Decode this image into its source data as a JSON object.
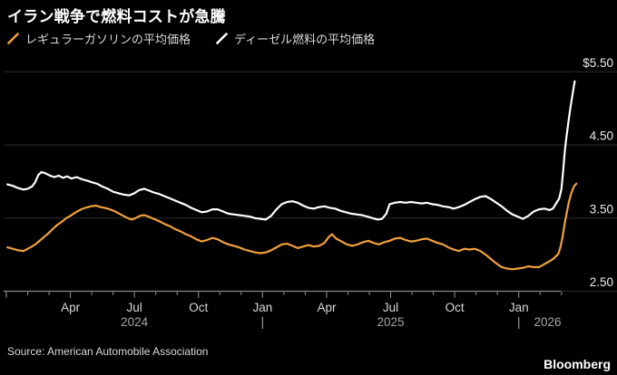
{
  "title": "イラン戦争で燃料コストが急騰",
  "legend": [
    {
      "label": "レギュラーガソリンの平均価格",
      "color": "#F1A13B"
    },
    {
      "label": "ディーゼル燃料の平均価格",
      "color": "#FFFFFF"
    }
  ],
  "source": "Source: American Automobile Association",
  "brand": "Bloomberg",
  "colors": {
    "background": "#000000",
    "gridline": "#2d2d2d",
    "axis": "#8a8a8a",
    "tick": "#9a9a9a",
    "axis_label": "#ededed",
    "month_label": "#d9d9d9",
    "year_label": "#a6a6a6",
    "gasoline": "#F1A13B",
    "diesel": "#FFFFFF"
  },
  "chart_data": {
    "type": "line",
    "x_unit": "months since Jan 2024",
    "y_axis": {
      "range": [
        2.5,
        5.5
      ],
      "ticks": [
        {
          "value": 5.5,
          "label": "$5.50"
        },
        {
          "value": 4.5,
          "label": "4.50"
        },
        {
          "value": 3.5,
          "label": "3.50"
        },
        {
          "value": 2.5,
          "label": "2.50"
        }
      ]
    },
    "x_axis": {
      "minor_tick_every_months": 1,
      "major_tick_every_months": 3,
      "first_month": 0,
      "last_month": 26,
      "month_labels": [
        {
          "m": 3,
          "label": "Apr"
        },
        {
          "m": 6,
          "label": "Jul"
        },
        {
          "m": 9,
          "label": "Oct"
        },
        {
          "m": 12,
          "label": "Jan"
        },
        {
          "m": 15,
          "label": "Apr"
        },
        {
          "m": 18,
          "label": "Jul"
        },
        {
          "m": 21,
          "label": "Oct"
        },
        {
          "m": 24,
          "label": "Jan"
        }
      ],
      "year_labels": [
        {
          "m": 6,
          "label": "2024"
        },
        {
          "m": 12,
          "label": "|"
        },
        {
          "m": 18,
          "label": "2025"
        },
        {
          "m": 24,
          "label": "|"
        },
        {
          "m": 25.35,
          "label": "2026"
        }
      ]
    },
    "series": [
      {
        "name": "レギュラーガソリンの平均価格",
        "key": "gasoline",
        "color": "#F1A13B",
        "points": [
          [
            0.05,
            3.1
          ],
          [
            0.3,
            3.08
          ],
          [
            0.55,
            3.06
          ],
          [
            0.8,
            3.05
          ],
          [
            1.0,
            3.08
          ],
          [
            1.2,
            3.11
          ],
          [
            1.4,
            3.15
          ],
          [
            1.6,
            3.2
          ],
          [
            1.8,
            3.25
          ],
          [
            2.0,
            3.3
          ],
          [
            2.2,
            3.36
          ],
          [
            2.4,
            3.41
          ],
          [
            2.6,
            3.45
          ],
          [
            2.8,
            3.5
          ],
          [
            3.0,
            3.53
          ],
          [
            3.25,
            3.58
          ],
          [
            3.5,
            3.62
          ],
          [
            3.7,
            3.64
          ],
          [
            3.95,
            3.66
          ],
          [
            4.2,
            3.67
          ],
          [
            4.4,
            3.65
          ],
          [
            4.6,
            3.64
          ],
          [
            4.85,
            3.62
          ],
          [
            5.1,
            3.59
          ],
          [
            5.35,
            3.55
          ],
          [
            5.6,
            3.51
          ],
          [
            5.85,
            3.48
          ],
          [
            6.05,
            3.5
          ],
          [
            6.25,
            3.53
          ],
          [
            6.45,
            3.54
          ],
          [
            6.65,
            3.52
          ],
          [
            6.9,
            3.49
          ],
          [
            7.15,
            3.46
          ],
          [
            7.4,
            3.42
          ],
          [
            7.65,
            3.39
          ],
          [
            7.9,
            3.35
          ],
          [
            8.15,
            3.32
          ],
          [
            8.4,
            3.28
          ],
          [
            8.65,
            3.25
          ],
          [
            8.9,
            3.21
          ],
          [
            9.15,
            3.18
          ],
          [
            9.4,
            3.2
          ],
          [
            9.65,
            3.23
          ],
          [
            9.9,
            3.21
          ],
          [
            10.15,
            3.17
          ],
          [
            10.4,
            3.14
          ],
          [
            10.65,
            3.12
          ],
          [
            10.9,
            3.1
          ],
          [
            11.15,
            3.07
          ],
          [
            11.4,
            3.05
          ],
          [
            11.65,
            3.03
          ],
          [
            11.9,
            3.02
          ],
          [
            12.15,
            3.03
          ],
          [
            12.4,
            3.06
          ],
          [
            12.65,
            3.1
          ],
          [
            12.9,
            3.14
          ],
          [
            13.15,
            3.15
          ],
          [
            13.4,
            3.12
          ],
          [
            13.65,
            3.09
          ],
          [
            13.9,
            3.11
          ],
          [
            14.15,
            3.13
          ],
          [
            14.4,
            3.11
          ],
          [
            14.65,
            3.12
          ],
          [
            14.9,
            3.16
          ],
          [
            15.1,
            3.24
          ],
          [
            15.25,
            3.28
          ],
          [
            15.45,
            3.22
          ],
          [
            15.7,
            3.18
          ],
          [
            15.95,
            3.14
          ],
          [
            16.2,
            3.12
          ],
          [
            16.45,
            3.14
          ],
          [
            16.7,
            3.17
          ],
          [
            16.95,
            3.19
          ],
          [
            17.2,
            3.16
          ],
          [
            17.45,
            3.14
          ],
          [
            17.7,
            3.17
          ],
          [
            17.95,
            3.19
          ],
          [
            18.2,
            3.22
          ],
          [
            18.45,
            3.23
          ],
          [
            18.7,
            3.2
          ],
          [
            18.95,
            3.18
          ],
          [
            19.2,
            3.19
          ],
          [
            19.45,
            3.21
          ],
          [
            19.7,
            3.22
          ],
          [
            19.95,
            3.19
          ],
          [
            20.2,
            3.16
          ],
          [
            20.45,
            3.14
          ],
          [
            20.7,
            3.1
          ],
          [
            20.95,
            3.07
          ],
          [
            21.2,
            3.05
          ],
          [
            21.45,
            3.08
          ],
          [
            21.7,
            3.07
          ],
          [
            21.95,
            3.08
          ],
          [
            22.2,
            3.05
          ],
          [
            22.45,
            3.0
          ],
          [
            22.7,
            2.94
          ],
          [
            22.95,
            2.88
          ],
          [
            23.2,
            2.83
          ],
          [
            23.45,
            2.81
          ],
          [
            23.7,
            2.8
          ],
          [
            23.95,
            2.81
          ],
          [
            24.2,
            2.82
          ],
          [
            24.45,
            2.84
          ],
          [
            24.7,
            2.83
          ],
          [
            24.95,
            2.83
          ],
          [
            25.2,
            2.87
          ],
          [
            25.45,
            2.91
          ],
          [
            25.65,
            2.95
          ],
          [
            25.85,
            3.01
          ],
          [
            25.95,
            3.1
          ],
          [
            26.05,
            3.24
          ],
          [
            26.15,
            3.42
          ],
          [
            26.25,
            3.58
          ],
          [
            26.35,
            3.72
          ],
          [
            26.45,
            3.83
          ],
          [
            26.55,
            3.91
          ],
          [
            26.63,
            3.95
          ],
          [
            26.7,
            3.97
          ]
        ]
      },
      {
        "name": "ディーゼル燃料の平均価格",
        "key": "diesel",
        "color": "#FFFFFF",
        "points": [
          [
            0.05,
            3.96
          ],
          [
            0.3,
            3.94
          ],
          [
            0.55,
            3.91
          ],
          [
            0.8,
            3.89
          ],
          [
            1.0,
            3.9
          ],
          [
            1.2,
            3.93
          ],
          [
            1.35,
            3.99
          ],
          [
            1.5,
            4.09
          ],
          [
            1.65,
            4.13
          ],
          [
            1.85,
            4.11
          ],
          [
            2.05,
            4.08
          ],
          [
            2.25,
            4.06
          ],
          [
            2.45,
            4.08
          ],
          [
            2.65,
            4.05
          ],
          [
            2.85,
            4.07
          ],
          [
            3.05,
            4.04
          ],
          [
            3.3,
            4.06
          ],
          [
            3.55,
            4.03
          ],
          [
            3.8,
            4.01
          ],
          [
            4.0,
            3.99
          ],
          [
            4.25,
            3.97
          ],
          [
            4.5,
            3.93
          ],
          [
            4.75,
            3.9
          ],
          [
            5.0,
            3.86
          ],
          [
            5.25,
            3.84
          ],
          [
            5.5,
            3.82
          ],
          [
            5.75,
            3.81
          ],
          [
            6.0,
            3.84
          ],
          [
            6.2,
            3.88
          ],
          [
            6.45,
            3.9
          ],
          [
            6.65,
            3.88
          ],
          [
            6.9,
            3.85
          ],
          [
            7.15,
            3.83
          ],
          [
            7.4,
            3.8
          ],
          [
            7.65,
            3.77
          ],
          [
            7.9,
            3.74
          ],
          [
            8.15,
            3.71
          ],
          [
            8.4,
            3.68
          ],
          [
            8.65,
            3.64
          ],
          [
            8.9,
            3.61
          ],
          [
            9.15,
            3.58
          ],
          [
            9.4,
            3.59
          ],
          [
            9.65,
            3.62
          ],
          [
            9.9,
            3.62
          ],
          [
            10.15,
            3.59
          ],
          [
            10.4,
            3.56
          ],
          [
            10.65,
            3.55
          ],
          [
            10.9,
            3.54
          ],
          [
            11.15,
            3.53
          ],
          [
            11.4,
            3.52
          ],
          [
            11.65,
            3.5
          ],
          [
            11.9,
            3.49
          ],
          [
            12.15,
            3.48
          ],
          [
            12.4,
            3.53
          ],
          [
            12.65,
            3.62
          ],
          [
            12.9,
            3.69
          ],
          [
            13.15,
            3.72
          ],
          [
            13.4,
            3.73
          ],
          [
            13.65,
            3.71
          ],
          [
            13.9,
            3.67
          ],
          [
            14.15,
            3.64
          ],
          [
            14.4,
            3.63
          ],
          [
            14.65,
            3.65
          ],
          [
            14.9,
            3.66
          ],
          [
            15.15,
            3.64
          ],
          [
            15.4,
            3.63
          ],
          [
            15.65,
            3.6
          ],
          [
            15.9,
            3.58
          ],
          [
            16.15,
            3.56
          ],
          [
            16.4,
            3.55
          ],
          [
            16.65,
            3.54
          ],
          [
            16.9,
            3.52
          ],
          [
            17.15,
            3.5
          ],
          [
            17.4,
            3.48
          ],
          [
            17.6,
            3.49
          ],
          [
            17.8,
            3.56
          ],
          [
            17.95,
            3.69
          ],
          [
            18.2,
            3.71
          ],
          [
            18.45,
            3.72
          ],
          [
            18.7,
            3.71
          ],
          [
            18.95,
            3.72
          ],
          [
            19.2,
            3.71
          ],
          [
            19.45,
            3.7
          ],
          [
            19.7,
            3.71
          ],
          [
            19.95,
            3.69
          ],
          [
            20.2,
            3.68
          ],
          [
            20.45,
            3.66
          ],
          [
            20.7,
            3.65
          ],
          [
            20.95,
            3.63
          ],
          [
            21.2,
            3.65
          ],
          [
            21.45,
            3.68
          ],
          [
            21.7,
            3.72
          ],
          [
            21.95,
            3.76
          ],
          [
            22.2,
            3.79
          ],
          [
            22.45,
            3.8
          ],
          [
            22.7,
            3.76
          ],
          [
            22.95,
            3.71
          ],
          [
            23.2,
            3.66
          ],
          [
            23.45,
            3.6
          ],
          [
            23.7,
            3.55
          ],
          [
            23.95,
            3.52
          ],
          [
            24.2,
            3.49
          ],
          [
            24.45,
            3.53
          ],
          [
            24.7,
            3.59
          ],
          [
            24.95,
            3.62
          ],
          [
            25.2,
            3.63
          ],
          [
            25.45,
            3.61
          ],
          [
            25.6,
            3.63
          ],
          [
            25.75,
            3.7
          ],
          [
            25.9,
            3.77
          ],
          [
            26.0,
            3.9
          ],
          [
            26.08,
            4.15
          ],
          [
            26.16,
            4.42
          ],
          [
            26.24,
            4.62
          ],
          [
            26.32,
            4.8
          ],
          [
            26.4,
            4.97
          ],
          [
            26.48,
            5.12
          ],
          [
            26.56,
            5.27
          ],
          [
            26.62,
            5.37
          ]
        ]
      }
    ]
  }
}
